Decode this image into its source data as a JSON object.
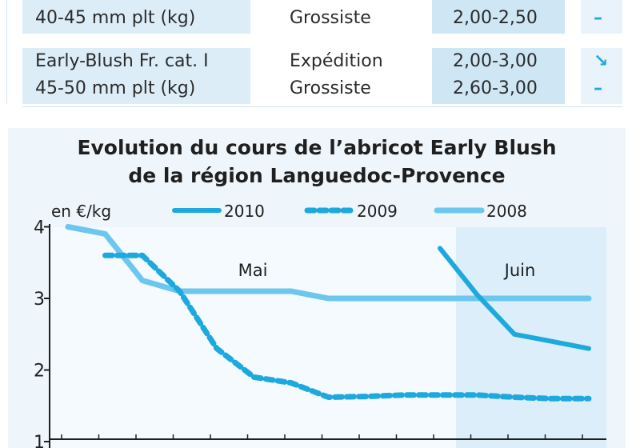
{
  "table": {
    "rows": [
      {
        "product_lines": [
          "",
          "40-45 mm plt (kg)"
        ],
        "channel_lines": [
          "",
          "Grossiste"
        ],
        "price_lines": [
          "",
          "2,00-2,50"
        ],
        "trend_lines": [
          "",
          "–"
        ]
      },
      {
        "product_lines": [
          "Early-Blush Fr. cat. I",
          "45-50 mm plt (kg)"
        ],
        "channel_lines": [
          "Expédition",
          "Grossiste"
        ],
        "price_lines": [
          "2,00-3,00",
          "2,60-3,00"
        ],
        "trend_lines": [
          "↘",
          "–"
        ]
      }
    ]
  },
  "chart_data": {
    "type": "line",
    "title": "Evolution du cours de l’abricot Early Blush",
    "subtitle": "de la région Languedoc-Provence",
    "ylabel": "en €/kg",
    "ylim": [
      1,
      4
    ],
    "yticks": [
      1,
      2,
      3,
      4
    ],
    "month_labels": [
      "Mai",
      "Juin"
    ],
    "x_points": 15,
    "legend_position": "top",
    "series": [
      {
        "name": "2010",
        "style": "solid-thick",
        "color": "#1ea9de",
        "points": [
          [
            11,
            3.7
          ],
          [
            12,
            3.05
          ],
          [
            13,
            2.5
          ],
          [
            14,
            2.4
          ],
          [
            15,
            2.3
          ]
        ]
      },
      {
        "name": "2009",
        "style": "dashed",
        "color": "#1ea9de",
        "points": [
          [
            2,
            3.6
          ],
          [
            3,
            3.6
          ],
          [
            4,
            3.1
          ],
          [
            5,
            2.3
          ],
          [
            6,
            1.9
          ],
          [
            7,
            1.82
          ],
          [
            8,
            1.62
          ],
          [
            9,
            1.63
          ],
          [
            10,
            1.65
          ],
          [
            11,
            1.65
          ],
          [
            12,
            1.65
          ],
          [
            13,
            1.62
          ],
          [
            14,
            1.6
          ],
          [
            15,
            1.6
          ]
        ]
      },
      {
        "name": "2008",
        "style": "solid-light",
        "color": "#6cc7ee",
        "points": [
          [
            1,
            4.0
          ],
          [
            2,
            3.9
          ],
          [
            3,
            3.25
          ],
          [
            4,
            3.1
          ],
          [
            5,
            3.1
          ],
          [
            6,
            3.1
          ],
          [
            7,
            3.1
          ],
          [
            8,
            3.0
          ],
          [
            9,
            3.0
          ],
          [
            10,
            3.0
          ],
          [
            11,
            3.0
          ],
          [
            12,
            3.0
          ],
          [
            13,
            3.0
          ],
          [
            14,
            3.0
          ],
          [
            15,
            3.0
          ]
        ]
      }
    ]
  }
}
